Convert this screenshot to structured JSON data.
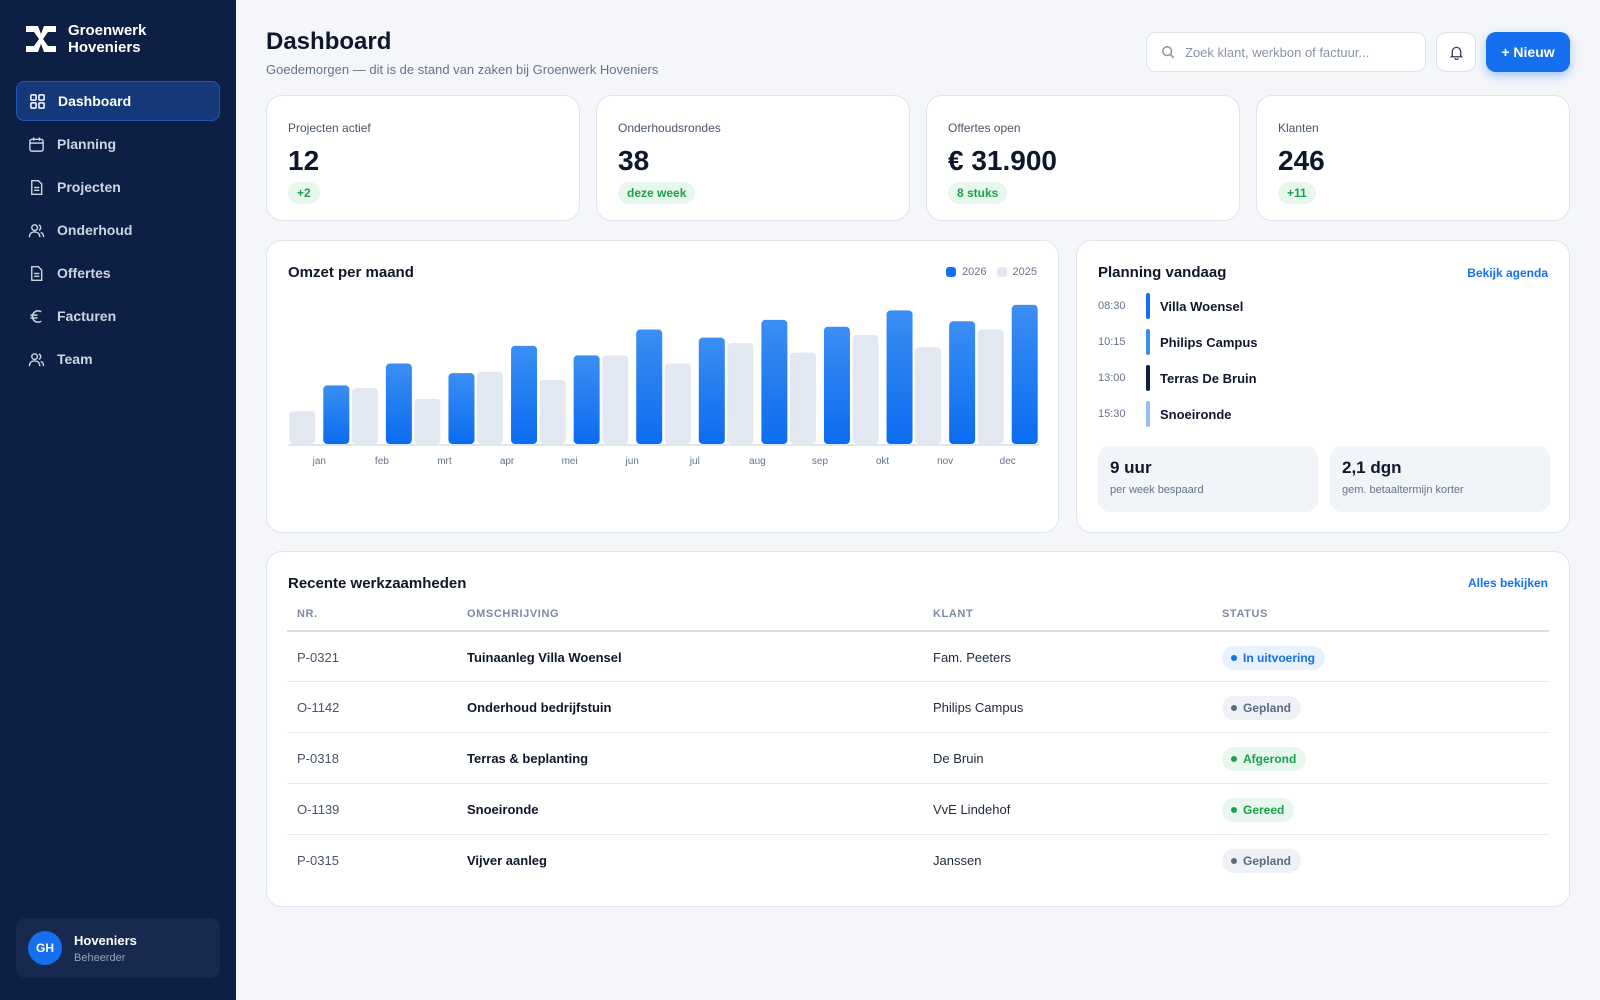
{
  "brand": {
    "name": "Groenwerk\nHoveniers"
  },
  "nav": [
    {
      "label": "Dashboard",
      "icon": "grid-icon",
      "active": true
    },
    {
      "label": "Planning",
      "icon": "calendar-icon",
      "active": false
    },
    {
      "label": "Projecten",
      "icon": "document-icon",
      "active": false
    },
    {
      "label": "Onderhoud",
      "icon": "users-icon",
      "active": false
    },
    {
      "label": "Offertes",
      "icon": "document-icon",
      "active": false
    },
    {
      "label": "Facturen",
      "icon": "euro-icon",
      "active": false
    },
    {
      "label": "Team",
      "icon": "users-icon",
      "active": false
    }
  ],
  "user": {
    "initials": "GH",
    "name": "Hoveniers",
    "role": "Beheerder"
  },
  "header": {
    "title": "Dashboard",
    "subtitle": "Goedemorgen — dit is de stand van zaken bij Groenwerk Hoveniers",
    "search_placeholder": "Zoek klant, werkbon of factuur...",
    "new_label": "+ Nieuw"
  },
  "kpis": [
    {
      "label": "Projecten actief",
      "value": "12",
      "badge": "+2"
    },
    {
      "label": "Onderhoudsrondes",
      "value": "38",
      "badge": "deze week"
    },
    {
      "label": "Offertes open",
      "value": "€ 31.900",
      "badge": "8 stuks"
    },
    {
      "label": "Klanten",
      "value": "246",
      "badge": "+11"
    }
  ],
  "revenue": {
    "title": "Omzet per maand"
  },
  "chart_data": {
    "type": "bar",
    "categories": [
      "jan",
      "feb",
      "mrt",
      "apr",
      "mei",
      "jun",
      "jul",
      "aug",
      "sep",
      "okt",
      "nov",
      "dec"
    ],
    "series": [
      {
        "name": "2025",
        "color": "#e2e8f2",
        "values": [
          24,
          41,
          33,
          53,
          47,
          65,
          59,
          74,
          67,
          80,
          71,
          84
        ]
      },
      {
        "name": "2026",
        "color": "#1470ef",
        "values": [
          43,
          59,
          52,
          72,
          65,
          84,
          78,
          91,
          86,
          98,
          90,
          102
        ]
      }
    ],
    "ylim": [
      0,
      110
    ],
    "grid": false,
    "legend": "top-right"
  },
  "planning": {
    "title": "Planning vandaag",
    "link": "Bekijk agenda",
    "items": [
      {
        "time": "08:30",
        "name": "Villa Woensel",
        "color": "#1470ef"
      },
      {
        "time": "10:15",
        "name": "Philips Campus",
        "color": "#3b8cf0"
      },
      {
        "time": "13:00",
        "name": "Terras De Bruin",
        "color": "#0e1f45"
      },
      {
        "time": "15:30",
        "name": "Snoeironde",
        "color": "#93bff5"
      }
    ],
    "stats": [
      {
        "value": "9 uur",
        "label": "per week bespaard"
      },
      {
        "value": "2,1 dgn",
        "label": "gem. betaaltermijn korter"
      }
    ]
  },
  "recent": {
    "title": "Recente werkzaamheden",
    "link": "Alles bekijken",
    "columns": [
      "NR.",
      "OMSCHRIJVING",
      "KLANT",
      "STATUS"
    ],
    "rows": [
      {
        "nr": "P-0321",
        "desc": "Tuinaanleg Villa Woensel",
        "klant": "Fam. Peeters",
        "status": "In uitvoering",
        "status_color": "#1470ef",
        "status_bg": "#e8f1fe"
      },
      {
        "nr": "O-1142",
        "desc": "Onderhoud bedrijfstuin",
        "klant": "Philips Campus",
        "status": "Gepland",
        "status_color": "#5b6b82",
        "status_bg": "#eef1f5"
      },
      {
        "nr": "P-0318",
        "desc": "Terras & beplanting",
        "klant": "De Bruin",
        "status": "Afgerond",
        "status_color": "#16a34a",
        "status_bg": "#e8f7ee"
      },
      {
        "nr": "O-1139",
        "desc": "Snoeironde",
        "klant": "VvE Lindehof",
        "status": "Gereed",
        "status_color": "#16a34a",
        "status_bg": "#e8f7ee"
      },
      {
        "nr": "P-0315",
        "desc": "Vijver aanleg",
        "klant": "Janssen",
        "status": "Gepland",
        "status_color": "#5b6b82",
        "status_bg": "#eef1f5"
      }
    ]
  },
  "colors": {
    "sidebar": "#0e1f45",
    "accent": "#1470ef",
    "success": "#16a34a"
  }
}
